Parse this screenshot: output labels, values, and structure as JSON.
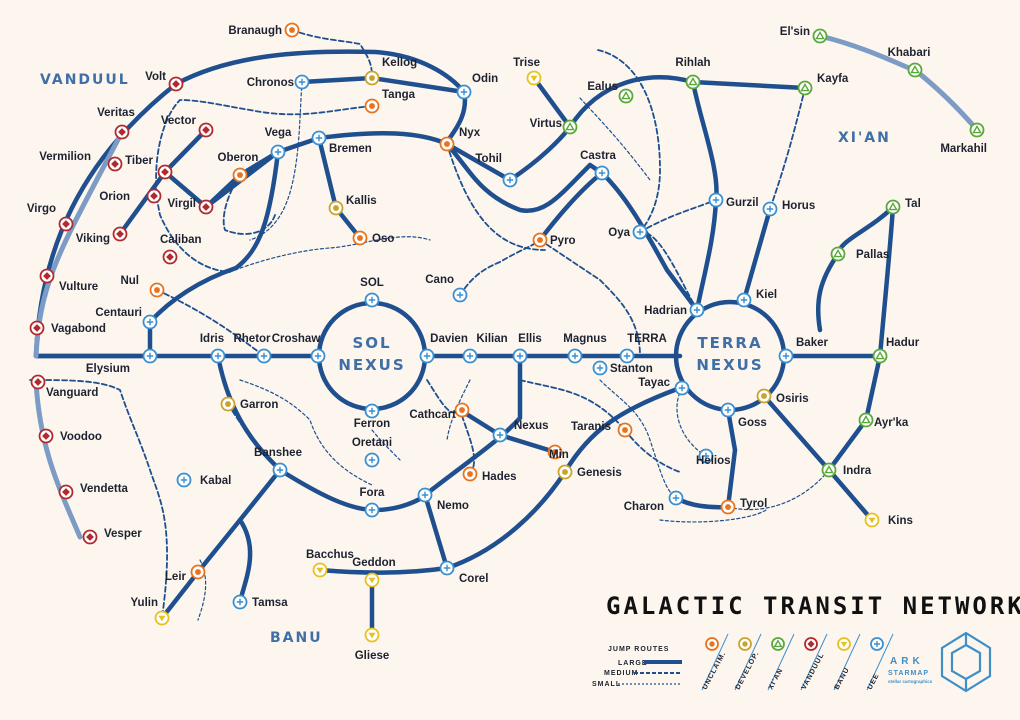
{
  "map": {
    "title": "GALACTIC TRANSIT NETWORK",
    "regions": [
      "VANDUUL",
      "XI'AN",
      "BANU"
    ],
    "nexus_labels": [
      [
        "SOL",
        "NEXUS"
      ],
      [
        "TERRA",
        "NEXUS"
      ]
    ],
    "colors": {
      "route": "#1f4f8f",
      "route_light": "#7c9cc5",
      "uee": "#3a8fd0",
      "unclaimed": "#e8731e",
      "develop": "#c9a42c",
      "xian": "#5aa83a",
      "vanduul": "#b02a30",
      "banu": "#e8c020",
      "background": "#fcf6ee"
    },
    "stations": [
      {
        "name": "Branaugh",
        "faction": "unclaimed"
      },
      {
        "name": "Chronos",
        "faction": "uee"
      },
      {
        "name": "Kellog",
        "faction": "develop"
      },
      {
        "name": "Tanga",
        "faction": "unclaimed"
      },
      {
        "name": "Odin",
        "faction": "uee"
      },
      {
        "name": "Trise",
        "faction": "banu"
      },
      {
        "name": "Ealus",
        "faction": "xian"
      },
      {
        "name": "Rihlah",
        "faction": "xian"
      },
      {
        "name": "Kayfa",
        "faction": "xian"
      },
      {
        "name": "El'sin",
        "faction": "xian"
      },
      {
        "name": "Khabari",
        "faction": "xian"
      },
      {
        "name": "Markahil",
        "faction": "xian"
      },
      {
        "name": "Volt",
        "faction": "vanduul"
      },
      {
        "name": "Veritas",
        "faction": "vanduul"
      },
      {
        "name": "Vector",
        "faction": "vanduul"
      },
      {
        "name": "Vermilion",
        "faction": "vanduul"
      },
      {
        "name": "Tiber",
        "faction": "vanduul"
      },
      {
        "name": "Orion",
        "faction": "vanduul"
      },
      {
        "name": "Virgo",
        "faction": "vanduul"
      },
      {
        "name": "Viking",
        "faction": "vanduul"
      },
      {
        "name": "Virgil",
        "faction": "vanduul"
      },
      {
        "name": "Caliban",
        "faction": "vanduul"
      },
      {
        "name": "Vulture",
        "faction": "vanduul"
      },
      {
        "name": "Vagabond",
        "faction": "vanduul"
      },
      {
        "name": "Vanguard",
        "faction": "vanduul"
      },
      {
        "name": "Voodoo",
        "faction": "vanduul"
      },
      {
        "name": "Vendetta",
        "faction": "vanduul"
      },
      {
        "name": "Vesper",
        "faction": "vanduul"
      },
      {
        "name": "Oberon",
        "faction": "unclaimed"
      },
      {
        "name": "Vega",
        "faction": "uee"
      },
      {
        "name": "Bremen",
        "faction": "uee"
      },
      {
        "name": "Nyx",
        "faction": "unclaimed"
      },
      {
        "name": "Virtus",
        "faction": "xian"
      },
      {
        "name": "Tohil",
        "faction": "uee"
      },
      {
        "name": "Castra",
        "faction": "uee"
      },
      {
        "name": "Gurzil",
        "faction": "uee"
      },
      {
        "name": "Horus",
        "faction": "uee"
      },
      {
        "name": "Tal",
        "faction": "xian"
      },
      {
        "name": "Kallis",
        "faction": "develop"
      },
      {
        "name": "Oso",
        "faction": "unclaimed"
      },
      {
        "name": "Oya",
        "faction": "uee"
      },
      {
        "name": "Pyro",
        "faction": "unclaimed"
      },
      {
        "name": "Pallas",
        "faction": "xian"
      },
      {
        "name": "Nul",
        "faction": "unclaimed"
      },
      {
        "name": "Centauri",
        "faction": "uee"
      },
      {
        "name": "SOL",
        "faction": "uee"
      },
      {
        "name": "Cano",
        "faction": "uee"
      },
      {
        "name": "Hadrian",
        "faction": "uee"
      },
      {
        "name": "Kiel",
        "faction": "uee"
      },
      {
        "name": "Elysium",
        "faction": "uee"
      },
      {
        "name": "Idris",
        "faction": "uee"
      },
      {
        "name": "Rhetor",
        "faction": "uee"
      },
      {
        "name": "Croshaw",
        "faction": "uee"
      },
      {
        "name": "Davien",
        "faction": "uee"
      },
      {
        "name": "Kilian",
        "faction": "uee"
      },
      {
        "name": "Ellis",
        "faction": "uee"
      },
      {
        "name": "Magnus",
        "faction": "uee"
      },
      {
        "name": "TERRA",
        "faction": "uee"
      },
      {
        "name": "Baker",
        "faction": "uee"
      },
      {
        "name": "Hadur",
        "faction": "xian"
      },
      {
        "name": "Stanton",
        "faction": "uee"
      },
      {
        "name": "Tayac",
        "faction": "uee"
      },
      {
        "name": "Osiris",
        "faction": "develop"
      },
      {
        "name": "Garron",
        "faction": "develop"
      },
      {
        "name": "Ferron",
        "faction": "uee"
      },
      {
        "name": "Cathcart",
        "faction": "unclaimed"
      },
      {
        "name": "Nexus",
        "faction": "uee"
      },
      {
        "name": "Taranis",
        "faction": "unclaimed"
      },
      {
        "name": "Goss",
        "faction": "uee"
      },
      {
        "name": "Ayr'ka",
        "faction": "xian"
      },
      {
        "name": "Oretani",
        "faction": "uee"
      },
      {
        "name": "Min",
        "faction": "unclaimed"
      },
      {
        "name": "Banshee",
        "faction": "uee"
      },
      {
        "name": "Hades",
        "faction": "unclaimed"
      },
      {
        "name": "Genesis",
        "faction": "develop"
      },
      {
        "name": "Helios",
        "faction": "uee"
      },
      {
        "name": "Indra",
        "faction": "xian"
      },
      {
        "name": "Kabal",
        "faction": "uee"
      },
      {
        "name": "Fora",
        "faction": "uee"
      },
      {
        "name": "Nemo",
        "faction": "uee"
      },
      {
        "name": "Charon",
        "faction": "uee"
      },
      {
        "name": "Tyrol",
        "faction": "unclaimed"
      },
      {
        "name": "Kins",
        "faction": "banu"
      },
      {
        "name": "Bacchus",
        "faction": "banu"
      },
      {
        "name": "Geddon",
        "faction": "banu"
      },
      {
        "name": "Corel",
        "faction": "uee"
      },
      {
        "name": "Leir",
        "faction": "unclaimed"
      },
      {
        "name": "Yulin",
        "faction": "banu"
      },
      {
        "name": "Tamsa",
        "faction": "uee"
      },
      {
        "name": "Gliese",
        "faction": "banu"
      }
    ]
  },
  "legend": {
    "jump_routes_label": "JUMP ROUTES",
    "sizes": [
      "LARGE",
      "MEDIUM",
      "SMALL"
    ],
    "factions": [
      {
        "key": "unclaimed",
        "label": "UNCLAIM."
      },
      {
        "key": "develop",
        "label": "DEVELOP."
      },
      {
        "key": "xian",
        "label": "XI'AN"
      },
      {
        "key": "vanduul",
        "label": "VANDUUL"
      },
      {
        "key": "banu",
        "label": "BANU"
      },
      {
        "key": "uee",
        "label": "UEE"
      }
    ]
  },
  "brand": {
    "name": "ARK",
    "sub": "STARMAP",
    "tagline": "stellar cartographics"
  }
}
